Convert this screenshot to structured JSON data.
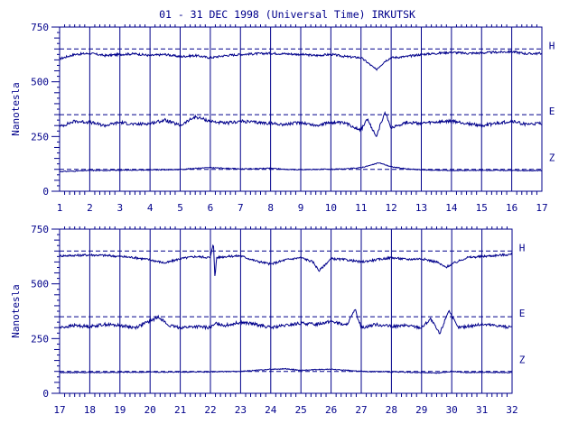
{
  "title": "01 - 31 DEC 1998 (Universal Time) IRKUTSK",
  "colors": {
    "ink": "#00008b",
    "background": "#ffffff"
  },
  "chart_data": [
    {
      "type": "line",
      "panel": "top",
      "xlabel": "",
      "ylabel": "Nanotesla",
      "xlim": [
        1,
        17
      ],
      "ylim": [
        0,
        750
      ],
      "x_ticks": [
        1,
        2,
        3,
        4,
        5,
        6,
        7,
        8,
        9,
        10,
        11,
        12,
        13,
        14,
        15,
        16,
        17
      ],
      "y_ticks": [
        0,
        250,
        500,
        750
      ],
      "grid": "vertical lines at each day",
      "legend": "series letters at right end of traces",
      "baselines": [
        {
          "component": "H",
          "value": 650
        },
        {
          "component": "E",
          "value": 350
        },
        {
          "component": "Z",
          "value": 100
        }
      ],
      "series": [
        {
          "name": "H",
          "x": [
            1,
            1.5,
            2,
            2.5,
            3,
            3.5,
            4,
            4.5,
            5,
            5.5,
            6,
            6.5,
            7,
            7.5,
            8,
            8.5,
            9,
            9.5,
            10,
            10.5,
            11,
            11.2,
            11.5,
            11.8,
            12,
            12.5,
            13,
            13.5,
            14,
            14.5,
            15,
            15.5,
            16,
            16.5,
            17
          ],
          "values": [
            605,
            625,
            630,
            620,
            625,
            628,
            620,
            625,
            615,
            620,
            610,
            620,
            625,
            628,
            630,
            628,
            625,
            620,
            625,
            615,
            610,
            590,
            555,
            595,
            610,
            615,
            625,
            630,
            635,
            630,
            632,
            635,
            638,
            628,
            630
          ]
        },
        {
          "name": "E",
          "x": [
            1,
            1.5,
            2,
            2.5,
            3,
            3.5,
            4,
            4.5,
            5,
            5.5,
            6,
            6.5,
            7,
            7.5,
            8,
            8.5,
            9,
            9.5,
            10,
            10.5,
            11,
            11.2,
            11.5,
            11.8,
            12,
            12.5,
            13,
            13.5,
            14,
            14.5,
            15,
            15.5,
            16,
            16.5,
            17
          ],
          "values": [
            295,
            320,
            315,
            300,
            315,
            305,
            310,
            325,
            300,
            340,
            320,
            310,
            320,
            315,
            310,
            305,
            315,
            300,
            315,
            310,
            280,
            330,
            250,
            360,
            290,
            315,
            310,
            315,
            320,
            310,
            300,
            310,
            320,
            305,
            310
          ]
        },
        {
          "name": "Z",
          "x": [
            1,
            1.5,
            2,
            2.5,
            3,
            3.5,
            4,
            4.5,
            5,
            5.5,
            6,
            6.5,
            7,
            7.5,
            8,
            8.5,
            9,
            9.5,
            10,
            10.5,
            11,
            11.3,
            11.6,
            12,
            12.5,
            13,
            13.5,
            14,
            14.5,
            15,
            15.5,
            16,
            16.5,
            17
          ],
          "values": [
            90,
            92,
            95,
            95,
            96,
            97,
            97,
            98,
            99,
            105,
            108,
            105,
            102,
            103,
            105,
            100,
            98,
            100,
            100,
            102,
            108,
            118,
            130,
            112,
            102,
            98,
            96,
            95,
            95,
            95,
            96,
            95,
            94,
            95
          ]
        }
      ]
    },
    {
      "type": "line",
      "panel": "bottom",
      "xlabel": "",
      "ylabel": "Nanotesla",
      "xlim": [
        17,
        32
      ],
      "ylim": [
        0,
        750
      ],
      "x_ticks": [
        17,
        18,
        19,
        20,
        21,
        22,
        23,
        24,
        25,
        26,
        27,
        28,
        29,
        30,
        31,
        32
      ],
      "y_ticks": [
        0,
        250,
        500,
        750
      ],
      "grid": "vertical lines at each day",
      "legend": "series letters at right end of traces",
      "baselines": [
        {
          "component": "H",
          "value": 650
        },
        {
          "component": "E",
          "value": 350
        },
        {
          "component": "Z",
          "value": 100
        }
      ],
      "series": [
        {
          "name": "H",
          "x": [
            17,
            17.5,
            18,
            18.5,
            19,
            19.5,
            20,
            20.5,
            21,
            21.5,
            22,
            22.1,
            22.15,
            22.2,
            22.5,
            23,
            23.5,
            24,
            24.5,
            25,
            25.4,
            25.6,
            26,
            26.5,
            27,
            27.5,
            28,
            28.5,
            29,
            29.5,
            29.8,
            30,
            30.5,
            31,
            31.5,
            32
          ],
          "values": [
            628,
            630,
            632,
            630,
            625,
            620,
            610,
            595,
            615,
            625,
            620,
            690,
            520,
            620,
            625,
            628,
            605,
            590,
            610,
            620,
            600,
            560,
            615,
            610,
            600,
            610,
            620,
            612,
            615,
            600,
            575,
            590,
            620,
            625,
            630,
            635
          ]
        },
        {
          "name": "E",
          "x": [
            17,
            17.5,
            18,
            18.5,
            19,
            19.5,
            20,
            20.3,
            20.6,
            21,
            21.5,
            22,
            22.2,
            22.5,
            23,
            23.5,
            24,
            24.5,
            25,
            25.5,
            26,
            26.5,
            26.8,
            27,
            27.5,
            28,
            28.5,
            29,
            29.3,
            29.6,
            29.9,
            30.2,
            30.5,
            31,
            31.5,
            32
          ],
          "values": [
            300,
            310,
            305,
            315,
            310,
            300,
            330,
            350,
            310,
            300,
            305,
            300,
            320,
            310,
            325,
            315,
            300,
            310,
            320,
            315,
            330,
            310,
            380,
            300,
            315,
            305,
            310,
            300,
            340,
            270,
            380,
            300,
            305,
            315,
            310,
            300
          ]
        },
        {
          "name": "Z",
          "x": [
            17,
            18,
            19,
            20,
            21,
            22,
            23,
            24,
            24.5,
            25,
            25.5,
            26,
            26.5,
            27,
            28,
            29,
            29.5,
            30,
            30.5,
            31,
            32
          ],
          "values": [
            95,
            95,
            96,
            97,
            97,
            98,
            100,
            110,
            112,
            105,
            108,
            110,
            105,
            100,
            98,
            95,
            92,
            100,
            95,
            96,
            95
          ]
        }
      ]
    }
  ]
}
